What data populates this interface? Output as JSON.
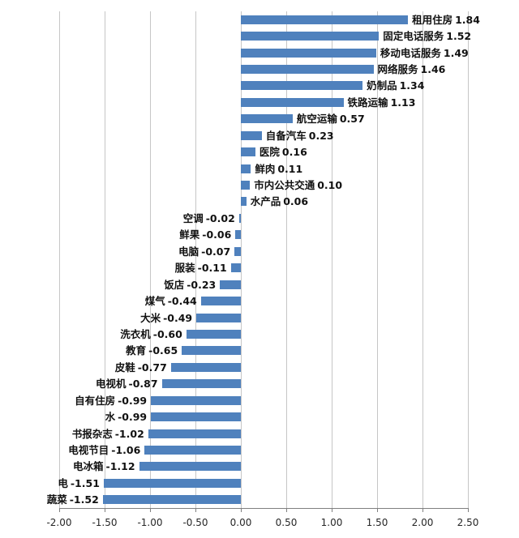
{
  "chart_data": {
    "type": "bar",
    "orientation": "horizontal",
    "title": "",
    "xlabel": "",
    "ylabel": "",
    "categories": [
      "租用住房",
      "固定电话服务",
      "移动电话服务",
      "网络服务",
      "奶制品",
      "铁路运输",
      "航空运输",
      "自备汽车",
      "医院",
      "鲜肉",
      "市内公共交通",
      "水产品",
      "空调",
      "鲜果",
      "电脑",
      "服装",
      "饭店",
      "煤气",
      "大米",
      "洗衣机",
      "教育",
      "皮鞋",
      "电视机",
      "自有住房",
      "水",
      "书报杂志",
      "电视节目",
      "电冰箱",
      "电",
      "蔬菜"
    ],
    "values": [
      1.84,
      1.52,
      1.49,
      1.46,
      1.34,
      1.13,
      0.57,
      0.23,
      0.16,
      0.11,
      0.1,
      0.06,
      -0.02,
      -0.06,
      -0.07,
      -0.11,
      -0.23,
      -0.44,
      -0.49,
      -0.6,
      -0.65,
      -0.77,
      -0.87,
      -0.99,
      -0.99,
      -1.02,
      -1.06,
      -1.12,
      -1.51,
      -1.52
    ],
    "data_labels": [
      "1.84",
      "1.52",
      "1.49",
      "1.46",
      "1.34",
      "1.13",
      "0.57",
      "0.23",
      "0.16",
      "0.11",
      "0.10",
      "0.06",
      "-0.02",
      "-0.06",
      "-0.07",
      "-0.11",
      "-0.23",
      "-0.44",
      "-0.49",
      "-0.60",
      "-0.65",
      "-0.77",
      "-0.87",
      "-0.99",
      "-0.99",
      "-1.02",
      "-1.06",
      "-1.12",
      "-1.51",
      "-1.52"
    ],
    "xlim": [
      -2.0,
      2.5
    ],
    "xtick_labels": [
      "-2.00",
      "-1.50",
      "-1.00",
      "-0.50",
      "0.00",
      "0.50",
      "1.00",
      "1.50",
      "2.00",
      "2.50"
    ],
    "grid": true,
    "legend": false,
    "colors": {
      "bar": "#4F81BD",
      "gridline": "#c6c6c6",
      "axis": "#7f7f7f",
      "data_label": "#111111",
      "tick_label": "#262626",
      "background": "#ffffff"
    }
  }
}
